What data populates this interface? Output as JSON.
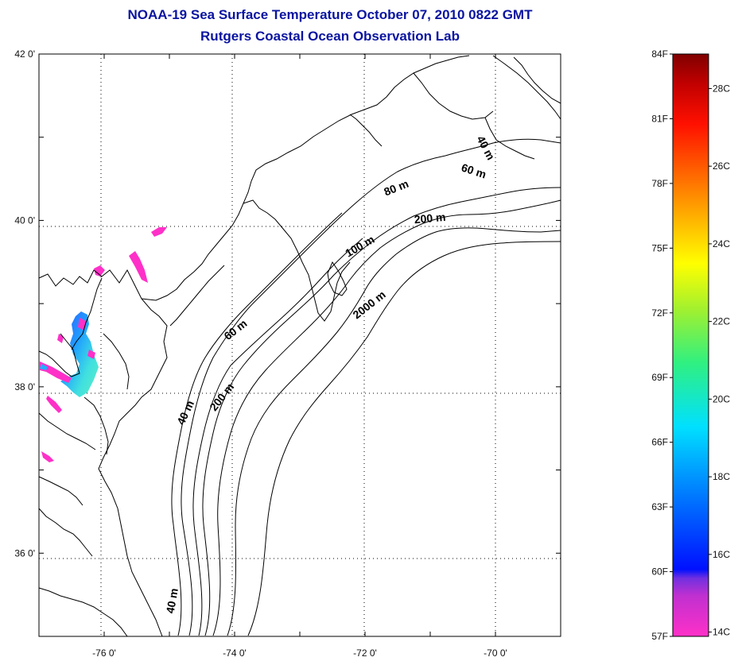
{
  "title": {
    "line1": "NOAA-19 Sea Surface Temperature October 07, 2010 0822 GMT",
    "line2": "Rutgers Coastal Ocean Observation Lab"
  },
  "map": {
    "lon_range": [
      -77.0,
      -69.0
    ],
    "lat_range": [
      35.0,
      42.0
    ],
    "x_tick_labels": [
      {
        "lon": -76,
        "label": "-76 0'"
      },
      {
        "lon": -74,
        "label": "-74 0'"
      },
      {
        "lon": -72,
        "label": "-72 0'"
      },
      {
        "lon": -70,
        "label": "-70 0'"
      }
    ],
    "y_tick_labels": [
      {
        "lat": 42,
        "label": "42 0'"
      },
      {
        "lat": 40,
        "label": "40 0'"
      },
      {
        "lat": 38,
        "label": "38 0'"
      },
      {
        "lat": 36,
        "label": "36 0'"
      }
    ],
    "depth_labels": [
      {
        "text": "40 m",
        "lon": -70.2,
        "lat": 40.85,
        "angle": 62
      },
      {
        "text": "60 m",
        "lon": -70.35,
        "lat": 40.55,
        "angle": 18
      },
      {
        "text": "80 m",
        "lon": -71.5,
        "lat": 40.35,
        "angle": -22
      },
      {
        "text": "200 m",
        "lon": -71.0,
        "lat": 39.98,
        "angle": -5
      },
      {
        "text": "100 m",
        "lon": -72.05,
        "lat": 39.65,
        "angle": -30
      },
      {
        "text": "2000 m",
        "lon": -71.9,
        "lat": 38.95,
        "angle": -38
      },
      {
        "text": "60 m",
        "lon": -73.95,
        "lat": 38.65,
        "angle": -38
      },
      {
        "text": "40 m",
        "lon": -74.7,
        "lat": 37.67,
        "angle": -65
      },
      {
        "text": "200 m",
        "lon": -74.15,
        "lat": 37.85,
        "angle": -52
      },
      {
        "text": "40 m",
        "lon": -74.9,
        "lat": 35.42,
        "angle": -80
      }
    ]
  },
  "colorbar": {
    "f_labels": [
      "84F",
      "81F",
      "78F",
      "75F",
      "72F",
      "69F",
      "66F",
      "63F",
      "60F",
      "57F"
    ],
    "c_labels": [
      "28C",
      "26C",
      "24C",
      "22C",
      "20C",
      "18C",
      "16C",
      "14C"
    ],
    "f_range": [
      57,
      84
    ],
    "colors": [
      "#ff30c8",
      "#b030d0",
      "#0010ff",
      "#0080ff",
      "#00e0ff",
      "#30f080",
      "#c0f020",
      "#ffff00",
      "#ffb000",
      "#ff5000",
      "#ff0000",
      "#c00000",
      "#800000"
    ]
  }
}
